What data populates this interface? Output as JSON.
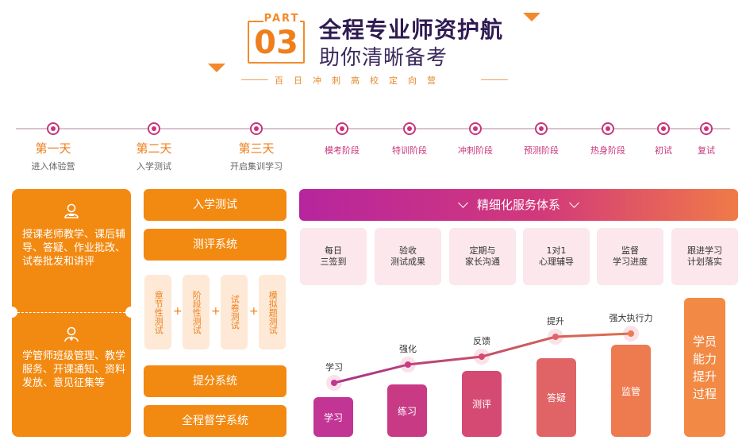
{
  "header": {
    "part_word": "PART",
    "part_number": "03",
    "title_line1": "全程专业师资护航",
    "title_line2": "助你清晰备考",
    "subtitle": "百日冲刺高校定向营"
  },
  "timeline": {
    "days": [
      {
        "label": "第一天",
        "desc": "进入体验营"
      },
      {
        "label": "第二天",
        "desc": "入学测试"
      },
      {
        "label": "第三天",
        "desc": "开启集训学习"
      }
    ],
    "stages": [
      "模考阶段",
      "特训阶段",
      "冲刺阶段",
      "预测阶段",
      "热身阶段",
      "初试",
      "复试"
    ]
  },
  "left_card": {
    "teacher_text": "授课老师教学、课后辅导、答疑、作业批改、试卷批发和讲评",
    "manager_text": "学管师班级管理、教学服务、开课通知、资料发放、意见征集等"
  },
  "middle": {
    "entrance_test": "入学测试",
    "evaluation_system": "测评系统",
    "tests": [
      "章节性测试",
      "阶段性测试",
      "试卷测试",
      "模拟题测试"
    ],
    "plus": "+",
    "score_system": "提分系统",
    "supervision_system": "全程督学系统"
  },
  "right": {
    "header": "精细化服务体系",
    "services": [
      "每日\n三签到",
      "验收\n测试成果",
      "定期与\n家长沟通",
      "1对1\n心理辅导",
      "监督\n学习进度",
      "跟进学习\n计划落实"
    ],
    "steps": [
      {
        "bar": "学习",
        "point": "学习"
      },
      {
        "bar": "练习",
        "point": "强化"
      },
      {
        "bar": "测评",
        "point": "反馈"
      },
      {
        "bar": "答疑",
        "point": "提升"
      },
      {
        "bar": "监管",
        "point": "强大执行力"
      }
    ],
    "final": "学员能力提升过程"
  },
  "colors": {
    "orange": "#f28a12",
    "magenta": "#c8357a",
    "purple": "#b7259e",
    "navy": "#2f1b52"
  }
}
